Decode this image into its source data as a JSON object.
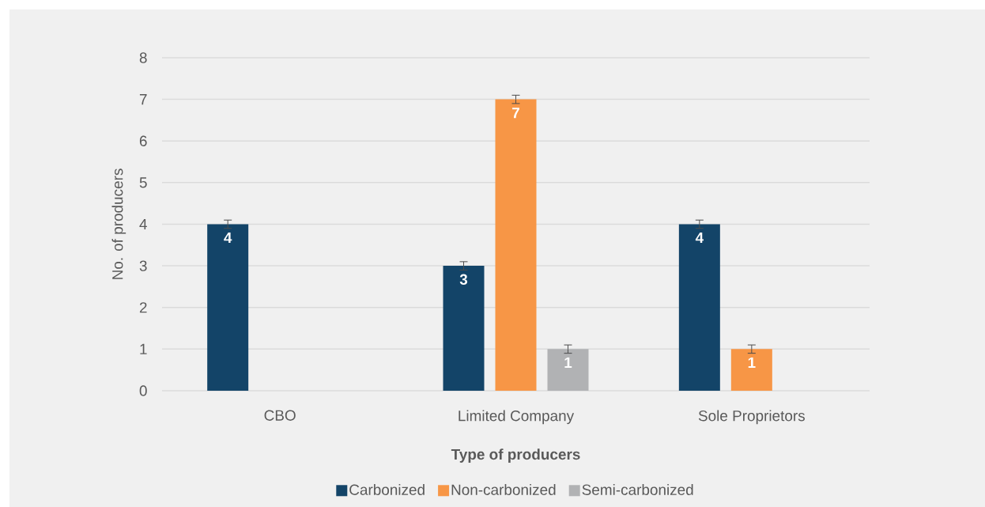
{
  "chart_data": {
    "type": "bar",
    "xlabel": "Type of producers",
    "ylabel": "No. of producers",
    "categories": [
      "CBO",
      "Limited Company",
      "Sole Proprietors"
    ],
    "series": [
      {
        "name": "Carbonized",
        "color": "#134468",
        "values": [
          4,
          3,
          4
        ],
        "errors": [
          0.1,
          0.1,
          0.1
        ]
      },
      {
        "name": "Non-carbonized",
        "color": "#f79646",
        "values": [
          null,
          7,
          1
        ],
        "errors": [
          null,
          0.1,
          0.1
        ]
      },
      {
        "name": "Semi-carbonized",
        "color": "#b1b2b4",
        "values": [
          null,
          1,
          null
        ],
        "errors": [
          null,
          0.1,
          null
        ]
      }
    ],
    "ylim": [
      0,
      8
    ],
    "yticks": [
      0,
      1,
      2,
      3,
      4,
      5,
      6,
      7,
      8
    ],
    "grid": "y",
    "legend": "bottom",
    "data_labels": true
  }
}
